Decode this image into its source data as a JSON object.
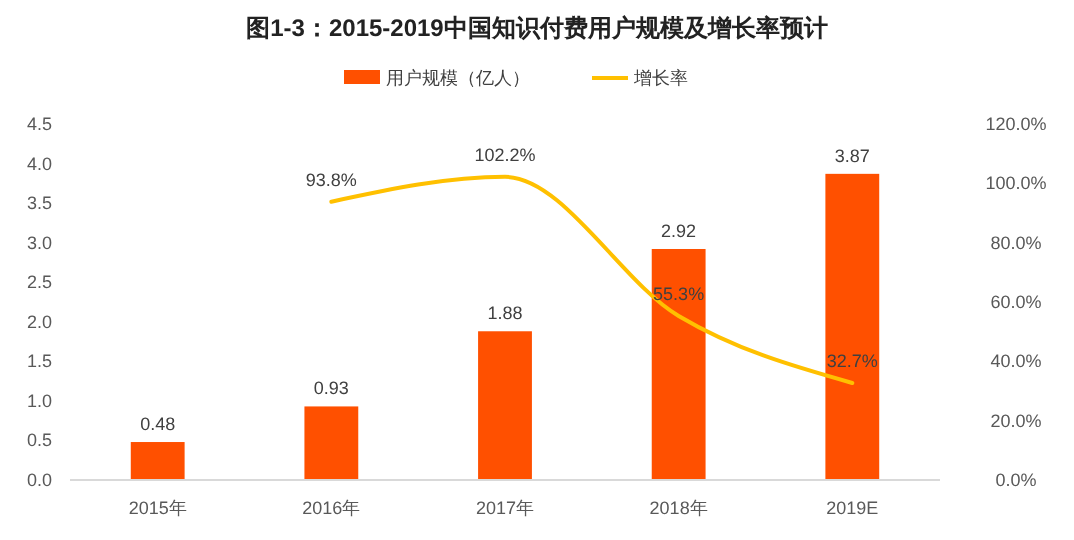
{
  "chart_data": {
    "type": "bar",
    "title": "图1-3：2015-2019中国知识付费用户规模及增长率预计",
    "categories": [
      "2015年",
      "2016年",
      "2017年",
      "2018年",
      "2019E"
    ],
    "series": [
      {
        "name": "用户规模（亿人）",
        "color": "#ff5000",
        "values": [
          0.48,
          0.93,
          1.88,
          2.92,
          3.87
        ],
        "value_labels": [
          "0.48",
          "0.93",
          "1.88",
          "2.92",
          "3.87"
        ]
      },
      {
        "name": "增长率",
        "type": "line",
        "axis": "y2",
        "color": "#ffc000",
        "values": [
          null,
          93.8,
          102.2,
          55.3,
          32.7
        ],
        "value_labels": [
          null,
          "93.8%",
          "102.2%",
          "55.3%",
          "32.7%"
        ]
      }
    ],
    "ylim": [
      0,
      4.5
    ],
    "yticks": [
      {
        "value": 0,
        "label": "0.0"
      },
      {
        "value": 0.5,
        "label": "0.5"
      },
      {
        "value": 1,
        "label": "1.0"
      },
      {
        "value": 1.5,
        "label": "1.5"
      },
      {
        "value": 2,
        "label": "2.0"
      },
      {
        "value": 2.5,
        "label": "2.5"
      },
      {
        "value": 3,
        "label": "3.0"
      },
      {
        "value": 3.5,
        "label": "3.5"
      },
      {
        "value": 4,
        "label": "4.0"
      },
      {
        "value": 4.5,
        "label": "4.5"
      }
    ],
    "y2lim": [
      0,
      120
    ],
    "y2ticks": [
      {
        "value": 0,
        "label": "0.0%"
      },
      {
        "value": 20,
        "label": "20.0%"
      },
      {
        "value": 40,
        "label": "40.0%"
      },
      {
        "value": 60,
        "label": "60.0%"
      },
      {
        "value": 80,
        "label": "80.0%"
      },
      {
        "value": 100,
        "label": "100.0%"
      },
      {
        "value": 120,
        "label": "120.0%"
      }
    ],
    "grid": false,
    "legend": "top",
    "marker": "none",
    "line_style": "solid"
  }
}
